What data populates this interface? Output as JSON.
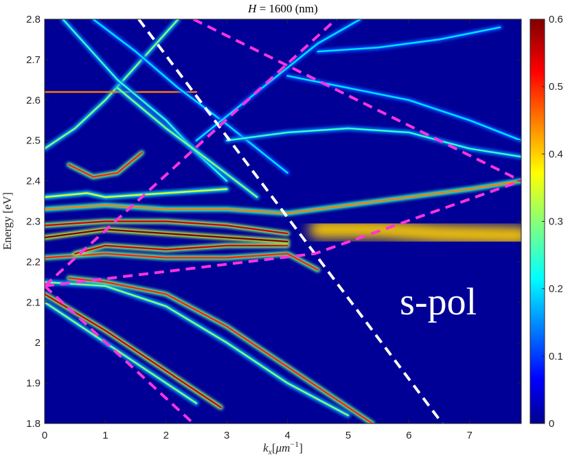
{
  "chart_data": {
    "type": "heatmap",
    "title": "H = 1600 (nm)",
    "xlabel": "k_x[μm^-1]",
    "ylabel": "Energy [eV]",
    "xlim": [
      0,
      7.85
    ],
    "ylim": [
      1.8,
      2.8
    ],
    "x_ticks": [
      "0",
      "1",
      "2",
      "3",
      "4",
      "5",
      "6",
      "7"
    ],
    "y_ticks": [
      "1.8",
      "1.9",
      "2",
      "2.1",
      "2.2",
      "2.3",
      "2.4",
      "2.5",
      "2.6",
      "2.7",
      "2.8"
    ],
    "colorbar": {
      "range": [
        0,
        0.6
      ],
      "ticks": [
        "0",
        "0.1",
        "0.2",
        "0.3",
        "0.4",
        "0.5",
        "0.6"
      ],
      "colormap": "jet"
    },
    "annotation": "s-pol",
    "overlay_lines": [
      {
        "name": "white-dashed-line",
        "color": "#ffffff",
        "points": [
          [
            1.55,
            2.8
          ],
          [
            6.55,
            1.8
          ]
        ]
      },
      {
        "name": "magenta-dashed-line-1",
        "color": "#ff33dd",
        "points": [
          [
            0,
            2.14
          ],
          [
            2.45,
            1.8
          ]
        ]
      },
      {
        "name": "magenta-dashed-line-2",
        "color": "#ff33dd",
        "points": [
          [
            0,
            2.14
          ],
          [
            4.8,
            2.8
          ]
        ]
      },
      {
        "name": "magenta-dashed-line-3",
        "color": "#ff33dd",
        "points": [
          [
            0,
            2.14
          ],
          [
            4.45,
            2.22
          ],
          [
            7.85,
            2.4
          ]
        ]
      },
      {
        "name": "magenta-dashed-line-4",
        "color": "#ff33dd",
        "points": [
          [
            2.45,
            2.8
          ],
          [
            7.85,
            2.4
          ]
        ]
      }
    ],
    "bands": [
      {
        "name": "band-lower-left",
        "points": [
          [
            0,
            2.12
          ],
          [
            1,
            2.03
          ],
          [
            2,
            1.93
          ],
          [
            2.9,
            1.84
          ]
        ],
        "intensity": 0.55
      },
      {
        "name": "band-lower-left-2",
        "points": [
          [
            0,
            2.1
          ],
          [
            1,
            2.0
          ],
          [
            2,
            1.9
          ],
          [
            2.5,
            1.85
          ]
        ],
        "intensity": 0.3
      },
      {
        "name": "band-middle-down",
        "points": [
          [
            0,
            2.15
          ],
          [
            1,
            2.14
          ],
          [
            2,
            2.09
          ],
          [
            3,
            2.0
          ],
          [
            4,
            1.9
          ],
          [
            5,
            1.82
          ]
        ],
        "intensity": 0.3
      },
      {
        "name": "band-middle-down-2",
        "points": [
          [
            0.4,
            2.16
          ],
          [
            1,
            2.15
          ],
          [
            2,
            2.12
          ],
          [
            3,
            2.04
          ],
          [
            4,
            1.94
          ],
          [
            5.4,
            1.8
          ]
        ],
        "intensity": 0.5
      },
      {
        "name": "band-2.21",
        "points": [
          [
            0,
            2.21
          ],
          [
            1,
            2.22
          ],
          [
            2,
            2.21
          ],
          [
            3,
            2.21
          ],
          [
            4,
            2.22
          ],
          [
            4.5,
            2.18
          ]
        ],
        "intensity": 0.5
      },
      {
        "name": "band-2.23",
        "points": [
          [
            0.5,
            2.22
          ],
          [
            1,
            2.24
          ],
          [
            2,
            2.23
          ],
          [
            3,
            2.24
          ],
          [
            4,
            2.24
          ]
        ],
        "intensity": 0.55
      },
      {
        "name": "band-2.26",
        "points": [
          [
            0,
            2.26
          ],
          [
            1,
            2.28
          ],
          [
            2,
            2.27
          ],
          [
            3,
            2.26
          ],
          [
            4,
            2.25
          ]
        ],
        "intensity": 0.6
      },
      {
        "name": "band-2.29",
        "points": [
          [
            0,
            2.29
          ],
          [
            1,
            2.3
          ],
          [
            2,
            2.3
          ],
          [
            3,
            2.29
          ],
          [
            4,
            2.27
          ]
        ],
        "intensity": 0.55
      },
      {
        "name": "band-2.33",
        "points": [
          [
            0,
            2.33
          ],
          [
            1,
            2.34
          ],
          [
            2,
            2.33
          ],
          [
            3,
            2.33
          ],
          [
            4,
            2.32
          ],
          [
            5,
            2.34
          ],
          [
            6,
            2.36
          ],
          [
            7,
            2.38
          ],
          [
            7.85,
            2.4
          ]
        ],
        "intensity": 0.45
      },
      {
        "name": "band-2.36",
        "points": [
          [
            0,
            2.36
          ],
          [
            0.7,
            2.37
          ],
          [
            1,
            2.36
          ],
          [
            2,
            2.37
          ],
          [
            3,
            2.38
          ]
        ],
        "intensity": 0.35
      },
      {
        "name": "band-2.40",
        "points": [
          [
            0.4,
            2.44
          ],
          [
            0.8,
            2.41
          ],
          [
            1.2,
            2.42
          ],
          [
            1.6,
            2.47
          ]
        ],
        "intensity": 0.5
      },
      {
        "name": "band-2.48",
        "points": [
          [
            0,
            2.48
          ],
          [
            0.5,
            2.53
          ],
          [
            1,
            2.6
          ],
          [
            1.6,
            2.7
          ],
          [
            2.2,
            2.8
          ]
        ],
        "intensity": 0.3
      },
      {
        "name": "band-2.62",
        "points": [
          [
            0,
            2.62
          ],
          [
            1,
            2.62
          ],
          [
            2,
            2.62
          ],
          [
            2.5,
            2.62
          ]
        ],
        "intensity": 0.45
      },
      {
        "name": "band-upper-1",
        "points": [
          [
            0.3,
            2.8
          ],
          [
            1.2,
            2.65
          ],
          [
            2,
            2.55
          ],
          [
            2.5,
            2.47
          ],
          [
            3,
            2.4
          ]
        ],
        "intensity": 0.25
      },
      {
        "name": "band-upper-2",
        "points": [
          [
            1.2,
            2.63
          ],
          [
            2,
            2.53
          ],
          [
            2.8,
            2.44
          ],
          [
            3.5,
            2.36
          ]
        ],
        "intensity": 0.3
      },
      {
        "name": "band-upper-3",
        "points": [
          [
            0.8,
            2.8
          ],
          [
            1.5,
            2.72
          ],
          [
            2.2,
            2.63
          ],
          [
            3,
            2.54
          ],
          [
            4,
            2.42
          ]
        ],
        "intensity": 0.2
      },
      {
        "name": "band-upper-4",
        "points": [
          [
            2.5,
            2.5
          ],
          [
            3.5,
            2.62
          ],
          [
            4.5,
            2.74
          ],
          [
            5.2,
            2.8
          ]
        ],
        "intensity": 0.2
      },
      {
        "name": "band-upper-5",
        "points": [
          [
            3,
            2.5
          ],
          [
            4,
            2.52
          ],
          [
            5,
            2.53
          ],
          [
            6,
            2.52
          ],
          [
            7,
            2.48
          ],
          [
            7.85,
            2.46
          ]
        ],
        "intensity": 0.25
      },
      {
        "name": "band-upper-6",
        "points": [
          [
            4,
            2.66
          ],
          [
            5,
            2.63
          ],
          [
            6,
            2.6
          ],
          [
            7,
            2.55
          ],
          [
            7.85,
            2.5
          ]
        ],
        "intensity": 0.2
      },
      {
        "name": "band-upper-7",
        "points": [
          [
            4.5,
            2.72
          ],
          [
            5.5,
            2.73
          ],
          [
            6.5,
            2.75
          ],
          [
            7.5,
            2.78
          ]
        ],
        "intensity": 0.2
      }
    ],
    "broad_band": {
      "name": "broad-band-2.26",
      "points": [
        [
          4.5,
          2.28
        ],
        [
          5.5,
          2.28
        ],
        [
          6.5,
          2.27
        ],
        [
          7.85,
          2.265
        ]
      ],
      "intensity": 0.4
    }
  }
}
